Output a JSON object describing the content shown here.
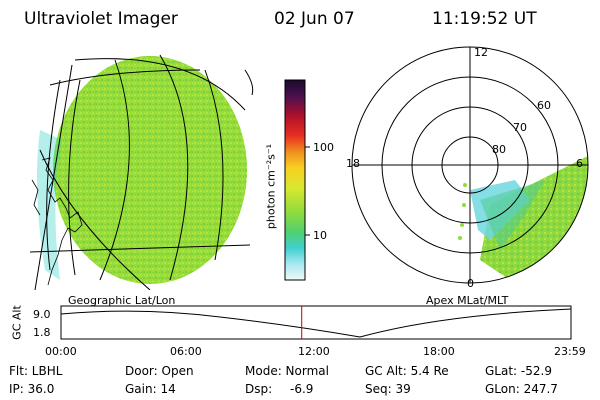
{
  "header": {
    "title": "Ultraviolet Imager",
    "date": "02 Jun 07",
    "time": "11:19:52 UT"
  },
  "left_panel": {
    "caption": "Geographic Lat/Lon"
  },
  "right_panel": {
    "caption": "Apex MLat/MLT",
    "mlt_labels": {
      "top": "12",
      "left": "18",
      "right": "6",
      "bottom": "0"
    },
    "lat_labels": [
      "60",
      "70",
      "80"
    ]
  },
  "colorbar": {
    "unit_label": "photon cm⁻²s⁻¹",
    "ticks": [
      {
        "label": "100",
        "value": 100
      },
      {
        "label": "10",
        "value": 10
      }
    ]
  },
  "altitude_plot": {
    "ylabel": "GC Alt",
    "yticks": [
      "9.0",
      "1.8"
    ],
    "xticks": [
      "00:00",
      "06:00",
      "12:00",
      "18:00",
      "23:59"
    ],
    "current_time_fraction": 0.472
  },
  "info": {
    "flt": "Flt: LBHL",
    "door": "Door: Open",
    "mode": "Mode: Normal",
    "gc_alt": "GC Alt: 5.4 Re",
    "glat": "GLat: -52.9",
    "ip": "IP: 36.0",
    "gain": "Gain: 14",
    "dsp_label": "Dsp:",
    "dsp_value": "-6.9",
    "seq": "Seq: 39",
    "glon": "GLon: 247.7"
  },
  "colors": {
    "disk_green": "#8fdc3c",
    "disk_yellow": "#c8e63c",
    "cyan": "#5fd8d8",
    "marker_red": "#c00000"
  }
}
